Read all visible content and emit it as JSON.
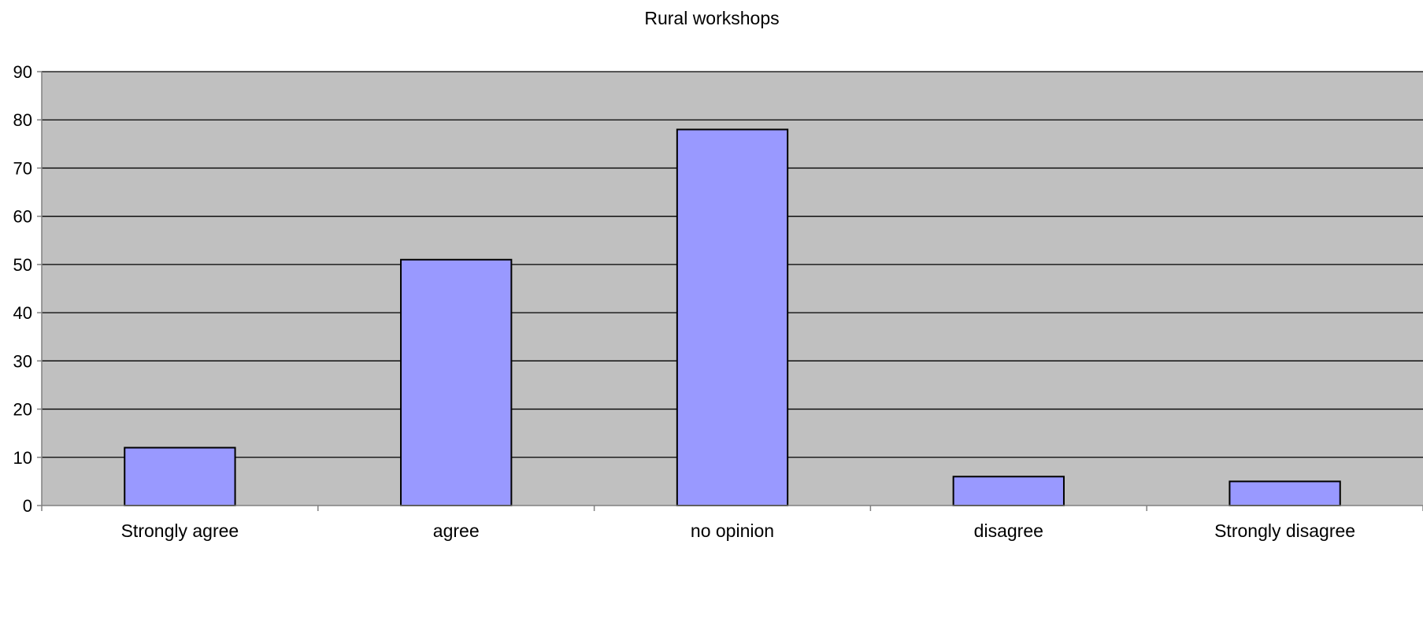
{
  "chart_data": {
    "type": "bar",
    "title": "Rural workshops",
    "xlabel": "",
    "ylabel": "",
    "categories": [
      "Strongly agree",
      "agree",
      "no opinion",
      "disagree",
      "Strongly disagree"
    ],
    "values": [
      12,
      51,
      78,
      6,
      5
    ],
    "ylim": [
      0,
      90
    ],
    "yticks": [
      0,
      10,
      20,
      30,
      40,
      50,
      60,
      70,
      80,
      90
    ],
    "grid": true,
    "legend": "none",
    "colors": {
      "plot_background": "#c0c0c0",
      "bar_fill": "#9999ff",
      "bar_stroke": "#000000",
      "gridline": "#000000",
      "axis": "#808080"
    }
  }
}
